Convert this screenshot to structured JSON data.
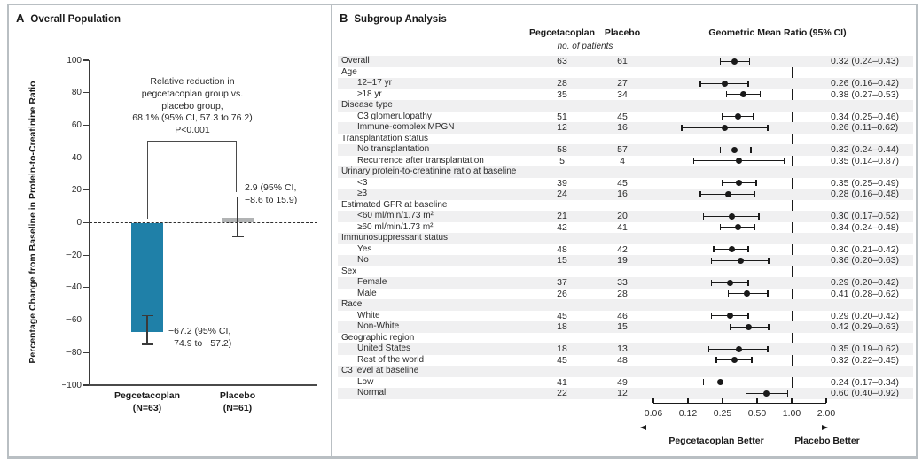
{
  "figure": {
    "panelA": {
      "panel_letter": "A",
      "title": "Overall Population",
      "y_axis_label": "Percentage Change from Baseline in Protein-to-Creatinine Ratio",
      "annotation_lines": [
        "Relative reduction in",
        "pegcetacoplan group vs.",
        "placebo group,",
        "68.1% (95% CI, 57.3 to 76.2)",
        "P<0.001"
      ],
      "peg_bar_label_lines": [
        "−67.2 (95% CI,",
        "−74.9 to −57.2)"
      ],
      "placebo_bar_label_lines": [
        "2.9 (95% CI,",
        "−8.6 to 15.9)"
      ]
    },
    "panelB": {
      "panel_letter": "B",
      "title": "Subgroup Analysis",
      "col_header_pegcetacoplan": "Pegcetacoplan",
      "col_header_placebo": "Placebo",
      "col_header_gmr": "Geometric Mean Ratio (95% CI)",
      "col_subnote": "no. of patients",
      "arrow_left_label": "Pegcetacoplan Better",
      "arrow_right_label": "Placebo Better"
    },
    "colors": {
      "pegcetacoplan_bar": "#1f80a8",
      "placebo_bar": "#b1b3b4",
      "row_stripe": "#f0f0f1",
      "marker": "#1a1a1a",
      "error_bar": "#3a3a3a"
    }
  },
  "chart_data": [
    {
      "type": "bar",
      "title": "Overall Population",
      "categories": [
        "Pegcetacoplan (N=63)",
        "Placebo (N=61)"
      ],
      "values": [
        -67.2,
        2.9
      ],
      "ci": [
        [
          -74.9,
          -57.2
        ],
        [
          -8.6,
          15.9
        ]
      ],
      "bar_colors": [
        "#1f80a8",
        "#b1b3b4"
      ],
      "ylabel": "Percentage Change from Baseline in Protein-to-Creatinine Ratio",
      "ylim": [
        -100,
        100
      ],
      "ytick_step": 20,
      "zero_line": "dashed",
      "annotation": "Relative reduction in pegcetacoplan group vs. placebo group, 68.1% (95% CI, 57.3 to 76.2) P<0.001"
    },
    {
      "type": "scatter",
      "subtype": "forest",
      "title": "Subgroup Analysis",
      "value_header": "Geometric Mean Ratio (95% CI)",
      "xscale": "log2",
      "x_ticks": [
        0.0625,
        0.125,
        0.25,
        0.5,
        1.0,
        2.0
      ],
      "x_tick_labels": [
        "0.06",
        "0.12",
        "0.25",
        "0.50",
        "1.00",
        "2.00"
      ],
      "ref_line": 1.0,
      "rows": [
        {
          "label": "Overall",
          "indent": 0,
          "peg": 63,
          "placebo": 61,
          "ratio": 0.32,
          "ci": [
            0.24,
            0.43
          ],
          "text": "0.32 (0.24–0.43)"
        },
        {
          "label": "Age",
          "group": true
        },
        {
          "label": "12–17 yr",
          "indent": 1,
          "peg": 28,
          "placebo": 27,
          "ratio": 0.26,
          "ci": [
            0.16,
            0.42
          ],
          "text": "0.26 (0.16–0.42)"
        },
        {
          "label": "≥18 yr",
          "indent": 1,
          "peg": 35,
          "placebo": 34,
          "ratio": 0.38,
          "ci": [
            0.27,
            0.53
          ],
          "text": "0.38 (0.27–0.53)"
        },
        {
          "label": "Disease type",
          "group": true
        },
        {
          "label": "C3 glomerulopathy",
          "indent": 1,
          "peg": 51,
          "placebo": 45,
          "ratio": 0.34,
          "ci": [
            0.25,
            0.46
          ],
          "text": "0.34 (0.25–0.46)"
        },
        {
          "label": "Immune-complex MPGN",
          "indent": 1,
          "peg": 12,
          "placebo": 16,
          "ratio": 0.26,
          "ci": [
            0.11,
            0.62
          ],
          "text": "0.26 (0.11–0.62)"
        },
        {
          "label": "Transplantation status",
          "group": true
        },
        {
          "label": "No transplantation",
          "indent": 1,
          "peg": 58,
          "placebo": 57,
          "ratio": 0.32,
          "ci": [
            0.24,
            0.44
          ],
          "text": "0.32 (0.24–0.44)"
        },
        {
          "label": "Recurrence after transplantation",
          "indent": 1,
          "peg": 5,
          "placebo": 4,
          "ratio": 0.35,
          "ci": [
            0.14,
            0.87
          ],
          "text": "0.35 (0.14–0.87)"
        },
        {
          "label": "Urinary protein-to-creatinine ratio at baseline",
          "group": true
        },
        {
          "label": "<3",
          "indent": 1,
          "peg": 39,
          "placebo": 45,
          "ratio": 0.35,
          "ci": [
            0.25,
            0.49
          ],
          "text": "0.35 (0.25–0.49)"
        },
        {
          "label": "≥3",
          "indent": 1,
          "peg": 24,
          "placebo": 16,
          "ratio": 0.28,
          "ci": [
            0.16,
            0.48
          ],
          "text": "0.28 (0.16–0.48)"
        },
        {
          "label": "Estimated GFR at baseline",
          "group": true
        },
        {
          "label": "<60 ml/min/1.73 m²",
          "indent": 1,
          "peg": 21,
          "placebo": 20,
          "ratio": 0.3,
          "ci": [
            0.17,
            0.52
          ],
          "text": "0.30 (0.17–0.52)"
        },
        {
          "label": "≥60 ml/min/1.73 m²",
          "indent": 1,
          "peg": 42,
          "placebo": 41,
          "ratio": 0.34,
          "ci": [
            0.24,
            0.48
          ],
          "text": "0.34 (0.24–0.48)"
        },
        {
          "label": "Immunosuppressant status",
          "group": true
        },
        {
          "label": "Yes",
          "indent": 1,
          "peg": 48,
          "placebo": 42,
          "ratio": 0.3,
          "ci": [
            0.21,
            0.42
          ],
          "text": "0.30 (0.21–0.42)"
        },
        {
          "label": "No",
          "indent": 1,
          "peg": 15,
          "placebo": 19,
          "ratio": 0.36,
          "ci": [
            0.2,
            0.63
          ],
          "text": "0.36 (0.20–0.63)"
        },
        {
          "label": "Sex",
          "group": true
        },
        {
          "label": "Female",
          "indent": 1,
          "peg": 37,
          "placebo": 33,
          "ratio": 0.29,
          "ci": [
            0.2,
            0.42
          ],
          "text": "0.29 (0.20–0.42)"
        },
        {
          "label": "Male",
          "indent": 1,
          "peg": 26,
          "placebo": 28,
          "ratio": 0.41,
          "ci": [
            0.28,
            0.62
          ],
          "text": "0.41 (0.28–0.62)"
        },
        {
          "label": "Race",
          "group": true
        },
        {
          "label": "White",
          "indent": 1,
          "peg": 45,
          "placebo": 46,
          "ratio": 0.29,
          "ci": [
            0.2,
            0.42
          ],
          "text": "0.29 (0.20–0.42)"
        },
        {
          "label": "Non-White",
          "indent": 1,
          "peg": 18,
          "placebo": 15,
          "ratio": 0.42,
          "ci": [
            0.29,
            0.63
          ],
          "text": "0.42 (0.29–0.63)"
        },
        {
          "label": "Geographic region",
          "group": true
        },
        {
          "label": "United States",
          "indent": 1,
          "peg": 18,
          "placebo": 13,
          "ratio": 0.35,
          "ci": [
            0.19,
            0.62
          ],
          "text": "0.35 (0.19–0.62)"
        },
        {
          "label": "Rest of the world",
          "indent": 1,
          "peg": 45,
          "placebo": 48,
          "ratio": 0.32,
          "ci": [
            0.22,
            0.45
          ],
          "text": "0.32 (0.22–0.45)"
        },
        {
          "label": "C3 level at baseline",
          "group": true
        },
        {
          "label": "Low",
          "indent": 1,
          "peg": 41,
          "placebo": 49,
          "ratio": 0.24,
          "ci": [
            0.17,
            0.34
          ],
          "text": "0.24 (0.17–0.34)"
        },
        {
          "label": "Normal",
          "indent": 1,
          "peg": 22,
          "placebo": 12,
          "ratio": 0.6,
          "ci": [
            0.4,
            0.92
          ],
          "text": "0.60 (0.40–0.92)"
        }
      ],
      "xlabel_left_arrow": "Pegcetacoplan Better",
      "xlabel_right_arrow": "Placebo Better"
    }
  ]
}
